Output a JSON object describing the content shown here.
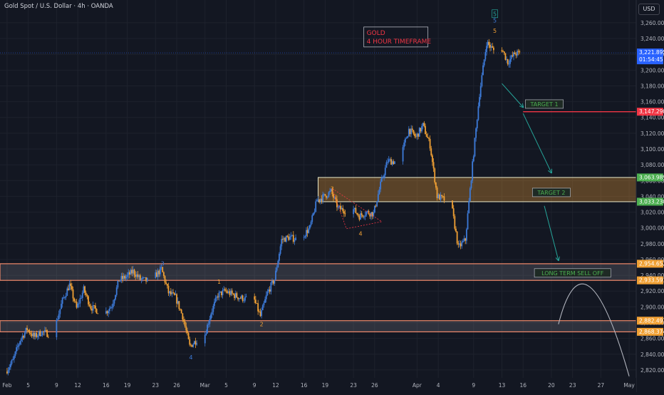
{
  "header": {
    "symbol_text": "Gold Spot / U.S. Dollar · 4h · OANDA"
  },
  "currency_button": "USD",
  "colors": {
    "background": "#131722",
    "grid": "#1e222d",
    "bull": "#3d7bd9",
    "bear": "#f0a034",
    "zone_fill": "#f0a034",
    "zone_stroke": "#ffffff",
    "red_line": "#f23645",
    "green_text": "#4caf50",
    "title_text": "#f23645"
  },
  "chart_data": {
    "type": "candlestick",
    "title": "",
    "xlabel": "",
    "ylabel": "",
    "y_axis_side": "right",
    "ylim": [
      2810,
      3278
    ],
    "y_ticks": [
      2820,
      2840,
      2860,
      2880,
      2900,
      2920,
      2940,
      2960,
      2980,
      3000,
      3020,
      3040,
      3060,
      3080,
      3100,
      3120,
      3140,
      3160,
      3180,
      3200,
      3220,
      3240,
      3260
    ],
    "x_ticks": [
      {
        "label": "Feb",
        "date": "2025-02-02"
      },
      {
        "label": "5",
        "date": "2025-02-05"
      },
      {
        "label": "9",
        "date": "2025-02-09"
      },
      {
        "label": "12",
        "date": "2025-02-12"
      },
      {
        "label": "16",
        "date": "2025-02-16"
      },
      {
        "label": "19",
        "date": "2025-02-19"
      },
      {
        "label": "23",
        "date": "2025-02-23"
      },
      {
        "label": "26",
        "date": "2025-02-26"
      },
      {
        "label": "Mar",
        "date": "2025-03-02"
      },
      {
        "label": "5",
        "date": "2025-03-05"
      },
      {
        "label": "9",
        "date": "2025-03-09"
      },
      {
        "label": "12",
        "date": "2025-03-12"
      },
      {
        "label": "16",
        "date": "2025-03-16"
      },
      {
        "label": "19",
        "date": "2025-03-19"
      },
      {
        "label": "23",
        "date": "2025-03-23"
      },
      {
        "label": "26",
        "date": "2025-03-26"
      },
      {
        "label": "Apr",
        "date": "2025-04-01"
      },
      {
        "label": "4",
        "date": "2025-04-04"
      },
      {
        "label": "9",
        "date": "2025-04-09"
      },
      {
        "label": "13",
        "date": "2025-04-13"
      },
      {
        "label": "16",
        "date": "2025-04-16"
      },
      {
        "label": "20",
        "date": "2025-04-20"
      },
      {
        "label": "23",
        "date": "2025-04-23"
      },
      {
        "label": "27",
        "date": "2025-04-27"
      },
      {
        "label": "May",
        "date": "2025-05-01"
      }
    ],
    "price_path": [
      {
        "date": "2025-02-02",
        "price": 2818
      },
      {
        "date": "2025-02-03",
        "price": 2832
      },
      {
        "date": "2025-02-04",
        "price": 2858
      },
      {
        "date": "2025-02-05",
        "price": 2872
      },
      {
        "date": "2025-02-06",
        "price": 2862
      },
      {
        "date": "2025-02-07",
        "price": 2868
      },
      {
        "date": "2025-02-08",
        "price": 2866
      },
      {
        "date": "2025-02-09",
        "price": 2876
      },
      {
        "date": "2025-02-10",
        "price": 2908
      },
      {
        "date": "2025-02-11",
        "price": 2928
      },
      {
        "date": "2025-02-12",
        "price": 2898
      },
      {
        "date": "2025-02-13",
        "price": 2922
      },
      {
        "date": "2025-02-14",
        "price": 2900
      },
      {
        "date": "2025-02-15",
        "price": 2895
      },
      {
        "date": "2025-02-16",
        "price": 2892
      },
      {
        "date": "2025-02-17",
        "price": 2902
      },
      {
        "date": "2025-02-18",
        "price": 2934
      },
      {
        "date": "2025-02-19",
        "price": 2938
      },
      {
        "date": "2025-02-20",
        "price": 2945
      },
      {
        "date": "2025-02-21",
        "price": 2935
      },
      {
        "date": "2025-02-22",
        "price": 2933
      },
      {
        "date": "2025-02-23",
        "price": 2938
      },
      {
        "date": "2025-02-24",
        "price": 2948
      },
      {
        "date": "2025-02-25",
        "price": 2918
      },
      {
        "date": "2025-02-26",
        "price": 2912
      },
      {
        "date": "2025-02-27",
        "price": 2888
      },
      {
        "date": "2025-02-28",
        "price": 2850
      },
      {
        "date": "2025-03-01",
        "price": 2858
      },
      {
        "date": "2025-03-02",
        "price": 2860
      },
      {
        "date": "2025-03-03",
        "price": 2892
      },
      {
        "date": "2025-03-04",
        "price": 2915
      },
      {
        "date": "2025-03-05",
        "price": 2920
      },
      {
        "date": "2025-03-06",
        "price": 2916
      },
      {
        "date": "2025-03-07",
        "price": 2912
      },
      {
        "date": "2025-03-08",
        "price": 2910
      },
      {
        "date": "2025-03-09",
        "price": 2912
      },
      {
        "date": "2025-03-10",
        "price": 2888
      },
      {
        "date": "2025-03-11",
        "price": 2918
      },
      {
        "date": "2025-03-12",
        "price": 2935
      },
      {
        "date": "2025-03-13",
        "price": 2985
      },
      {
        "date": "2025-03-14",
        "price": 2988
      },
      {
        "date": "2025-03-15",
        "price": 2986
      },
      {
        "date": "2025-03-16",
        "price": 2990
      },
      {
        "date": "2025-03-17",
        "price": 3000
      },
      {
        "date": "2025-03-18",
        "price": 3035
      },
      {
        "date": "2025-03-19",
        "price": 3040
      },
      {
        "date": "2025-03-20",
        "price": 3046
      },
      {
        "date": "2025-03-21",
        "price": 3025
      },
      {
        "date": "2025-03-22",
        "price": 3022
      },
      {
        "date": "2025-03-23",
        "price": 3025
      },
      {
        "date": "2025-03-24",
        "price": 3015
      },
      {
        "date": "2025-03-25",
        "price": 3020
      },
      {
        "date": "2025-03-26",
        "price": 3018
      },
      {
        "date": "2025-03-27",
        "price": 3055
      },
      {
        "date": "2025-03-28",
        "price": 3085
      },
      {
        "date": "2025-03-29",
        "price": 3084
      },
      {
        "date": "2025-03-30",
        "price": 3095
      },
      {
        "date": "2025-03-31",
        "price": 3125
      },
      {
        "date": "2025-04-01",
        "price": 3115
      },
      {
        "date": "2025-04-02",
        "price": 3130
      },
      {
        "date": "2025-04-03",
        "price": 3105
      },
      {
        "date": "2025-04-04",
        "price": 3040
      },
      {
        "date": "2025-04-05",
        "price": 3036
      },
      {
        "date": "2025-04-06",
        "price": 3030
      },
      {
        "date": "2025-04-07",
        "price": 2975
      },
      {
        "date": "2025-04-08",
        "price": 2985
      },
      {
        "date": "2025-04-09",
        "price": 3080
      },
      {
        "date": "2025-04-10",
        "price": 3170
      },
      {
        "date": "2025-04-11",
        "price": 3235
      },
      {
        "date": "2025-04-12",
        "price": 3225
      },
      {
        "date": "2025-04-13",
        "price": 3230
      },
      {
        "date": "2025-04-14",
        "price": 3210
      },
      {
        "date": "2025-04-15",
        "price": 3221
      }
    ],
    "price_labels": [
      {
        "text": "3,221.895",
        "sub": "01:54:45",
        "price": 3221.895,
        "color": "#2962ff"
      },
      {
        "text": "3,147.290",
        "price": 3147.29,
        "color": "#f23645"
      },
      {
        "text": "3,063.989",
        "price": 3063.989,
        "color": "#4caf50"
      },
      {
        "text": "3,033.230",
        "price": 3033.23,
        "color": "#4caf50"
      },
      {
        "text": "2,954.652",
        "price": 2954.652,
        "color": "#f0a034"
      },
      {
        "text": "2,933.591",
        "price": 2933.591,
        "color": "#f0a034"
      },
      {
        "text": "2,882.497",
        "price": 2882.497,
        "color": "#f0a034"
      },
      {
        "text": "2,868.374",
        "price": 2868.374,
        "color": "#f0a034"
      }
    ],
    "zones": [
      {
        "from_date": "2025-03-18",
        "to_date": "2025-05-02",
        "low": 3033.23,
        "high": 3063.989,
        "style": "orange"
      },
      {
        "from_date": "2025-02-01",
        "to_date": "2025-05-02",
        "low": 2933.591,
        "high": 2954.652,
        "style": "gray"
      },
      {
        "from_date": "2025-02-01",
        "to_date": "2025-05-02",
        "low": 2868.374,
        "high": 2882.497,
        "style": "gray"
      }
    ],
    "hlines": [
      {
        "from_date": "2025-04-16",
        "to_date": "2025-05-02",
        "price": 3147.29,
        "color": "#f23645"
      }
    ],
    "annotations": [
      {
        "text": "GOLD",
        "text2": "4 HOUR TIMEFRAME",
        "date": "2025-03-29",
        "price": 3242,
        "kind": "title-box"
      },
      {
        "text": "TARGET 1",
        "date": "2025-04-19",
        "price": 3157,
        "kind": "green-box"
      },
      {
        "text": "TARGET 2",
        "date": "2025-04-20",
        "price": 3045,
        "kind": "green-box"
      },
      {
        "text": "LONG TERM SELL OFF",
        "date": "2025-04-23",
        "price": 2943,
        "kind": "green-box"
      },
      {
        "text": "1",
        "date": "2025-03-04",
        "price": 2932,
        "kind": "wave-orange"
      },
      {
        "text": "2",
        "date": "2025-03-10",
        "price": 2878,
        "kind": "wave-orange"
      },
      {
        "text": "3",
        "date": "2025-02-24",
        "price": 2955,
        "kind": "wave-blue"
      },
      {
        "text": "4",
        "date": "2025-02-28",
        "price": 2836,
        "kind": "wave-blue"
      },
      {
        "text": "3",
        "date": "2025-03-20",
        "price": 3050,
        "kind": "wave-orange"
      },
      {
        "text": "4",
        "date": "2025-03-24",
        "price": 2993,
        "kind": "wave-orange"
      },
      {
        "text": "5",
        "date": "2025-04-12",
        "price": 3263,
        "kind": "wave-blue"
      },
      {
        "text": "5",
        "date": "2025-04-12",
        "price": 3250,
        "kind": "wave-orange"
      },
      {
        "text": "5",
        "date": "2025-04-12",
        "price": 3271,
        "kind": "wave-green-boxed"
      }
    ],
    "arrows": [
      {
        "from": {
          "date": "2025-04-13",
          "price": 3183
        },
        "to": {
          "date": "2025-04-16",
          "price": 3153
        }
      },
      {
        "from": {
          "date": "2025-04-16",
          "price": 3145
        },
        "to": {
          "date": "2025-04-20",
          "price": 3070
        }
      },
      {
        "from": {
          "date": "2025-04-19",
          "price": 3028
        },
        "to": {
          "date": "2025-04-21",
          "price": 2959
        }
      }
    ],
    "projection_curve": {
      "start": {
        "date": "2025-04-21",
        "price": 2878
      },
      "peak": {
        "date": "2025-04-25",
        "price": 2930
      },
      "end": {
        "date": "2025-05-01",
        "price": 2812
      }
    },
    "triangle": [
      {
        "date": "2025-03-20",
        "price": 3050
      },
      {
        "date": "2025-03-27",
        "price": 3008
      },
      {
        "date": "2025-03-22",
        "price": 2999
      }
    ]
  }
}
